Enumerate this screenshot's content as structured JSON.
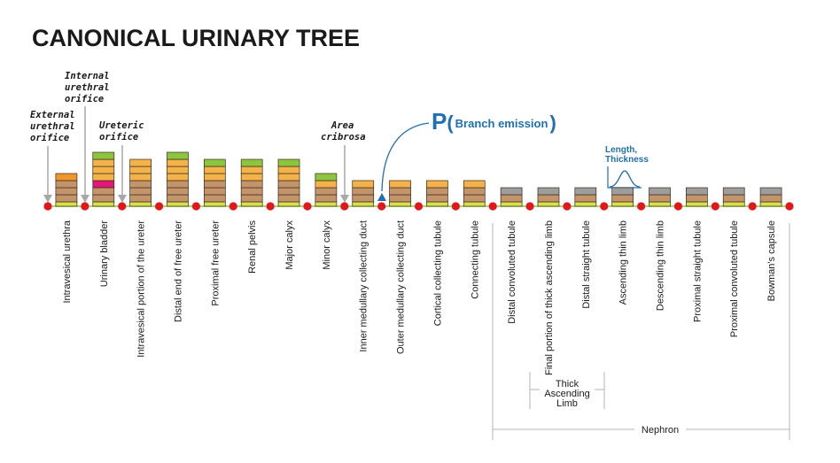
{
  "title": "CANONICAL URINARY TREE",
  "annotations": {
    "external_urethral_orifice": [
      "External",
      "urethral",
      "orifice"
    ],
    "internal_urethral_orifice": [
      "Internal",
      "urethral",
      "orifice"
    ],
    "ureteric_orifice": [
      "Ureteric",
      "orifice"
    ],
    "area_cribrosa": [
      "Area",
      "cribrosa"
    ]
  },
  "branch_emission": {
    "symbol": "P",
    "open": "(",
    "text": "Branch emission",
    "close": ")"
  },
  "length_thickness": [
    "Length,",
    "Thickness"
  ],
  "segments": [
    {
      "label": "Intravesical urethra",
      "layers": [
        "#c4956a",
        "#c4956a",
        "#c4956a",
        "#f0962a"
      ]
    },
    {
      "label": "Urinary bladder",
      "layers": [
        "#c4956a",
        "#c4956a",
        "#e2177a",
        "#f4b24a",
        "#f4b24a",
        "#f4b24a",
        "#8cc63f"
      ]
    },
    {
      "label": "Intravesical portion of the ureter",
      "layers": [
        "#c4956a",
        "#c4956a",
        "#c4956a",
        "#f4b24a",
        "#f4b24a",
        "#f4b24a"
      ]
    },
    {
      "label": "Distal end of free ureter",
      "layers": [
        "#c4956a",
        "#c4956a",
        "#c4956a",
        "#f4b24a",
        "#f4b24a",
        "#f4b24a",
        "#8cc63f"
      ]
    },
    {
      "label": "Proximal free ureter",
      "layers": [
        "#c4956a",
        "#c4956a",
        "#c4956a",
        "#f4b24a",
        "#f4b24a",
        "#8cc63f"
      ]
    },
    {
      "label": "Renal pelvis",
      "layers": [
        "#c4956a",
        "#c4956a",
        "#c4956a",
        "#f4b24a",
        "#f4b24a",
        "#8cc63f"
      ]
    },
    {
      "label": "Major calyx",
      "layers": [
        "#c4956a",
        "#c4956a",
        "#c4956a",
        "#f4b24a",
        "#f4b24a",
        "#8cc63f"
      ]
    },
    {
      "label": "Minor calyx",
      "layers": [
        "#c4956a",
        "#c4956a",
        "#f4b24a",
        "#8cc63f"
      ]
    },
    {
      "label": "Inner medullary collecting duct",
      "layers": [
        "#c4956a",
        "#c4956a",
        "#f4b24a"
      ]
    },
    {
      "label": "Outer medullary collecting duct",
      "layers": [
        "#c4956a",
        "#c4956a",
        "#f4b24a"
      ]
    },
    {
      "label": "Cortical collecting tubule",
      "layers": [
        "#c4956a",
        "#c4956a",
        "#f4b24a"
      ]
    },
    {
      "label": "Connecting tubule",
      "layers": [
        "#c4956a",
        "#c4956a",
        "#f4b24a"
      ]
    },
    {
      "label": "Distal convoluted tubule",
      "layers": [
        "#c4956a",
        "#9d9d9d"
      ]
    },
    {
      "label": "Final portion of thick ascending limb",
      "layers": [
        "#c4956a",
        "#9d9d9d"
      ]
    },
    {
      "label": "Distal straight tubule",
      "layers": [
        "#c4956a",
        "#9d9d9d"
      ]
    },
    {
      "label": "Ascending thin limb",
      "layers": [
        "#c4956a",
        "#9d9d9d"
      ]
    },
    {
      "label": "Descending thin limb",
      "layers": [
        "#c4956a",
        "#9d9d9d"
      ]
    },
    {
      "label": "Proximal straight tubule",
      "layers": [
        "#c4956a",
        "#9d9d9d"
      ]
    },
    {
      "label": "Proximal convoluted tubule",
      "layers": [
        "#c4956a",
        "#9d9d9d"
      ]
    },
    {
      "label": "Bowman's capsule",
      "layers": [
        "#c4956a",
        "#9d9d9d"
      ]
    }
  ],
  "groups": {
    "thick_ascending_limb": [
      "Thick",
      "Ascending",
      "Limb"
    ],
    "nephron": "Nephron"
  },
  "colors": {
    "node": "#e3161c",
    "axis": "#8cc63f",
    "base_layer": "#d8e04a",
    "accent_blue": "#1f6fb5",
    "arrow_gray": "#a8a8a8"
  }
}
